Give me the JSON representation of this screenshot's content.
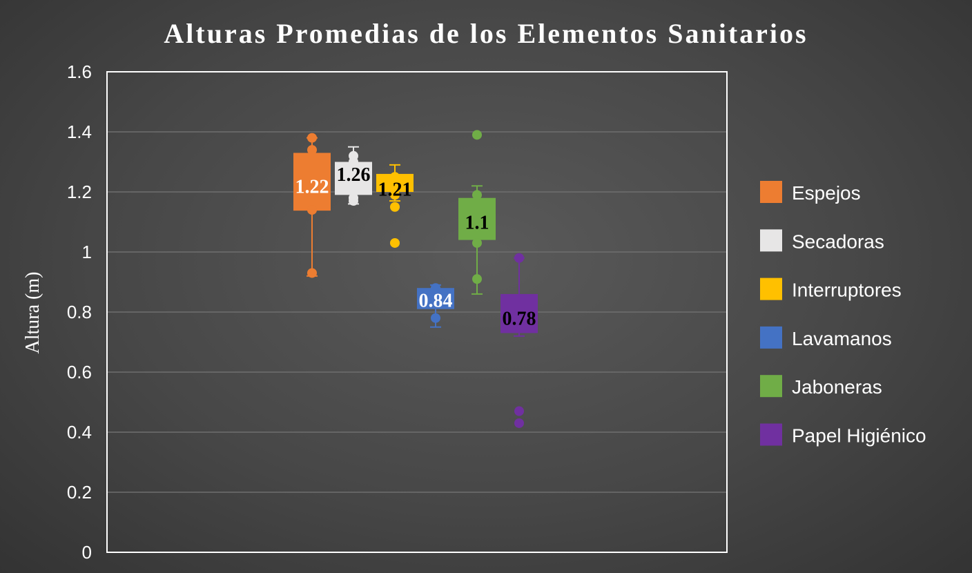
{
  "chart_data": {
    "type": "boxplot",
    "title": "Alturas Promedias de los Elementos Sanitarios",
    "ylabel": "Altura (m)",
    "ylim": [
      0,
      1.6
    ],
    "yticks": [
      "0",
      "0.2",
      "0.4",
      "0.6",
      "0.8",
      "1",
      "1.2",
      "1.4",
      "1.6"
    ],
    "grid": true,
    "legend_position": "right",
    "series": [
      {
        "name": "Espejos",
        "color": "#ED7D31",
        "label_color": "#FFFFFF",
        "min": 0.92,
        "q1": 1.14,
        "median": 1.14,
        "q3": 1.33,
        "max": 1.38,
        "mean": 1.22,
        "mean_label": "1.22",
        "points": [
          1.38,
          1.34,
          1.14,
          0.93
        ]
      },
      {
        "name": "Secadoras",
        "color": "#E7E6E6",
        "label_color": "#000000",
        "min": 1.16,
        "q1": 1.19,
        "median": 1.21,
        "q3": 1.3,
        "max": 1.35,
        "mean": 1.26,
        "mean_label": "1.26",
        "points": [
          1.32,
          1.3,
          1.18,
          1.17
        ]
      },
      {
        "name": "Interruptores",
        "color": "#FFC000",
        "label_color": "#000000",
        "min": 1.17,
        "q1": 1.2,
        "median": 1.21,
        "q3": 1.26,
        "max": 1.29,
        "mean": 1.21,
        "mean_label": "1.21",
        "points": [
          1.25,
          1.19,
          1.15,
          1.03
        ]
      },
      {
        "name": "Lavamanos",
        "color": "#4472C4",
        "label_color": "#FFFFFF",
        "min": 0.75,
        "q1": 0.81,
        "median": 0.84,
        "q3": 0.88,
        "max": 0.89,
        "mean": 0.84,
        "mean_label": "0.84",
        "points": [
          0.88,
          0.78
        ]
      },
      {
        "name": "Jaboneras",
        "color": "#70AD47",
        "label_color": "#000000",
        "min": 0.86,
        "q1": 1.04,
        "median": 1.1,
        "q3": 1.18,
        "max": 1.22,
        "mean": 1.1,
        "mean_label": "1.1",
        "points": [
          1.39,
          1.19,
          1.03,
          0.91
        ]
      },
      {
        "name": "Papel Higiénico",
        "color": "#7030A0",
        "label_color": "#000000",
        "min": 0.72,
        "q1": 0.73,
        "median": 0.78,
        "q3": 0.86,
        "max": 0.98,
        "mean": 0.78,
        "mean_label": "0.78",
        "points": [
          0.98,
          0.47,
          0.43
        ]
      }
    ]
  }
}
